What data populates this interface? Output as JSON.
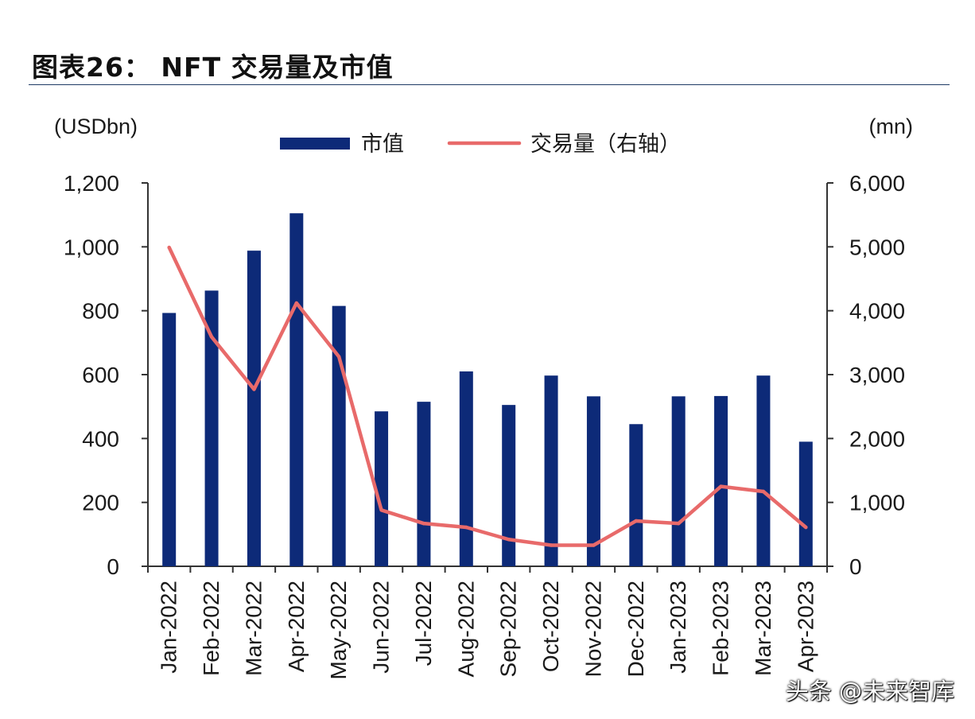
{
  "title": "图表26： NFT 交易量及市值",
  "watermark": "头条 @未来智库",
  "chart_data": {
    "type": "bar+line",
    "categories": [
      "Jan-2022",
      "Feb-2022",
      "Mar-2022",
      "Apr-2022",
      "May-2022",
      "Jun-2022",
      "Jul-2022",
      "Aug-2022",
      "Sep-2022",
      "Oct-2022",
      "Nov-2022",
      "Dec-2022",
      "Jan-2023",
      "Feb-2023",
      "Mar-2023",
      "Apr-2023"
    ],
    "series": [
      {
        "name": "市值",
        "type": "bar",
        "axis": "left",
        "color": "#0d2a78",
        "values": [
          793,
          863,
          988,
          1105,
          815,
          485,
          515,
          610,
          505,
          597,
          532,
          445,
          532,
          533,
          597,
          390
        ]
      },
      {
        "name": "交易量（右轴）",
        "type": "line",
        "axis": "right",
        "color": "#e86a6a",
        "values": [
          4990,
          3590,
          2770,
          4120,
          3280,
          880,
          670,
          610,
          420,
          330,
          330,
          710,
          670,
          1250,
          1170,
          610
        ]
      }
    ],
    "left_axis": {
      "label": "(USDbn)",
      "ylim": [
        0,
        1200
      ],
      "ticks": [
        0,
        200,
        400,
        600,
        800,
        1000,
        1200
      ],
      "tick_labels": [
        "0",
        "200",
        "400",
        "600",
        "800",
        "1,000",
        "1,200"
      ]
    },
    "right_axis": {
      "label": "(mn)",
      "ylim": [
        0,
        6000
      ],
      "ticks": [
        0,
        1000,
        2000,
        3000,
        4000,
        5000,
        6000
      ],
      "tick_labels": [
        "0",
        "1,000",
        "2,000",
        "3,000",
        "4,000",
        "5,000",
        "6,000"
      ]
    },
    "legend": {
      "placement": "top-center"
    },
    "grid": false
  }
}
